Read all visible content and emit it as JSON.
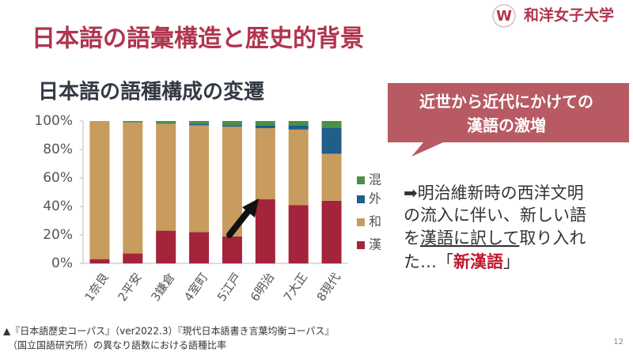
{
  "slide": {
    "title": "日本語の語彙構造と歴史的背景",
    "logo": "和洋女子大学",
    "callout": [
      "近世から近代にかけての",
      "漢語の激増"
    ],
    "body": [
      "➡明治維新時の西洋文明",
      "の流入に伴い、新しい語",
      [
        "を",
        "漢語に訳して",
        "取り入れ"
      ],
      [
        "た…「",
        "新漢語",
        "」"
      ]
    ],
    "footnote": [
      "▲『日本語歴史コーパス』（ver2022.3）『現代日本語書き言葉均衡コーパス』",
      "（国立国語研究所）の異なり語数における語種比率"
    ],
    "page_number": "12"
  },
  "chart_data": {
    "type": "stacked-bar",
    "title": "日本語の語種構成の変遷",
    "categories": [
      "1奈良",
      "2平安",
      "3鎌倉",
      "4室町",
      "5江戸",
      "6明治",
      "7大正",
      "8現代"
    ],
    "series": [
      {
        "name": "漢",
        "color": "#a3243b",
        "values": [
          3,
          7,
          23,
          22,
          19,
          45,
          41,
          44
        ]
      },
      {
        "name": "和",
        "color": "#c89b5e",
        "values": [
          97,
          92,
          75,
          75,
          77,
          50,
          53,
          33
        ]
      },
      {
        "name": "外",
        "color": "#1f5f8a",
        "values": [
          0,
          0,
          0,
          1,
          1,
          2,
          3,
          18
        ]
      },
      {
        "name": "混",
        "color": "#4a8f4a",
        "values": [
          0,
          1,
          2,
          2,
          3,
          3,
          3,
          5
        ]
      }
    ],
    "ylim": [
      0,
      100
    ],
    "yticks": [
      {
        "value": 0,
        "label": "0%"
      },
      {
        "value": 20,
        "label": "20%"
      },
      {
        "value": 40,
        "label": "40%"
      },
      {
        "value": 60,
        "label": "60%"
      },
      {
        "value": 80,
        "label": "80%"
      },
      {
        "value": 100,
        "label": "100%"
      }
    ]
  }
}
